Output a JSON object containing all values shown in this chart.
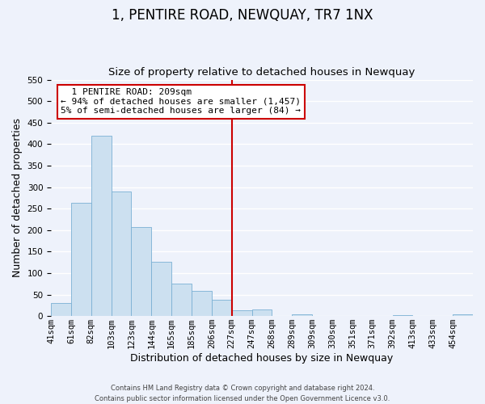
{
  "title": "1, PENTIRE ROAD, NEWQUAY, TR7 1NX",
  "subtitle": "Size of property relative to detached houses in Newquay",
  "xlabel": "Distribution of detached houses by size in Newquay",
  "ylabel": "Number of detached properties",
  "bin_labels": [
    "41sqm",
    "61sqm",
    "82sqm",
    "103sqm",
    "123sqm",
    "144sqm",
    "165sqm",
    "185sqm",
    "206sqm",
    "227sqm",
    "247sqm",
    "268sqm",
    "289sqm",
    "309sqm",
    "330sqm",
    "351sqm",
    "371sqm",
    "392sqm",
    "413sqm",
    "433sqm",
    "454sqm"
  ],
  "bar_heights": [
    30,
    263,
    420,
    290,
    207,
    126,
    75,
    58,
    38,
    14,
    15,
    0,
    5,
    0,
    0,
    0,
    0,
    3,
    0,
    0,
    4
  ],
  "bar_color": "#cce0f0",
  "bar_edge_color": "#7ab0d4",
  "vline_x": 9.0,
  "vline_color": "#cc0000",
  "ylim": [
    0,
    550
  ],
  "yticks": [
    0,
    50,
    100,
    150,
    200,
    250,
    300,
    350,
    400,
    450,
    500,
    550
  ],
  "annotation_title": "1 PENTIRE ROAD: 209sqm",
  "annotation_line1": "← 94% of detached houses are smaller (1,457)",
  "annotation_line2": "5% of semi-detached houses are larger (84) →",
  "annotation_box_color": "#ffffff",
  "annotation_box_edge": "#cc0000",
  "footer1": "Contains HM Land Registry data © Crown copyright and database right 2024.",
  "footer2": "Contains public sector information licensed under the Open Government Licence v3.0.",
  "background_color": "#eef2fb",
  "grid_color": "#ffffff",
  "title_fontsize": 12,
  "subtitle_fontsize": 9.5,
  "label_fontsize": 9,
  "tick_fontsize": 7.5,
  "footer_fontsize": 6.0
}
